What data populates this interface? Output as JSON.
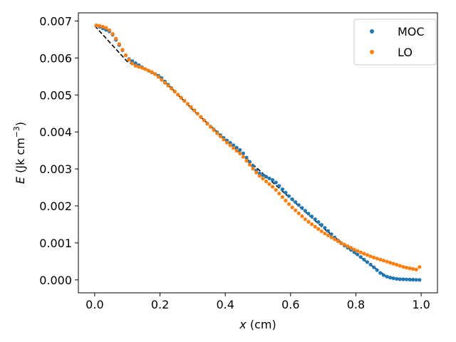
{
  "chart_data": {
    "type": "scatter",
    "xlabel_var": "x",
    "xlabel_unit": " (cm)",
    "ylabel_var": "E",
    "ylabel_unit_pre": " (Jk cm",
    "ylabel_unit_sup": "−3",
    "ylabel_unit_post": ")",
    "xlim": [
      -0.05,
      1.05
    ],
    "ylim": [
      -0.00035,
      0.00722
    ],
    "x_ticks": [
      0.0,
      0.2,
      0.4,
      0.6,
      0.8,
      1.0
    ],
    "x_tick_labels": [
      "0.0",
      "0.2",
      "0.4",
      "0.6",
      "0.8",
      "1.0"
    ],
    "y_ticks": [
      0.0,
      0.001,
      0.002,
      0.003,
      0.004,
      0.005,
      0.006,
      0.007
    ],
    "y_tick_labels": [
      "0.000",
      "0.001",
      "0.002",
      "0.003",
      "0.004",
      "0.005",
      "0.006",
      "0.007"
    ],
    "legend": {
      "position": "top-right",
      "entries": [
        "MOC",
        "LO"
      ]
    },
    "colors": {
      "MOC": "#1f77b4",
      "LO": "#ff7f0e",
      "reference": "#000000"
    },
    "reference_line": {
      "style": "dashed",
      "points": [
        [
          0.0,
          0.00687
        ],
        [
          0.1,
          0.0059
        ],
        [
          0.2,
          0.0055
        ],
        [
          0.3,
          0.0046
        ],
        [
          0.4,
          0.0038
        ],
        [
          0.5,
          0.003
        ],
        [
          0.6,
          0.0022
        ],
        [
          0.7,
          0.0014
        ],
        [
          0.8,
          0.0007
        ],
        [
          0.9,
          5e-05
        ],
        [
          1.0,
          0.0
        ]
      ]
    },
    "series": [
      {
        "name": "MOC",
        "keypoints": [
          [
            0.005,
            0.00688
          ],
          [
            0.05,
            0.0067
          ],
          [
            0.1,
            0.006
          ],
          [
            0.15,
            0.00572
          ],
          [
            0.2,
            0.0055
          ],
          [
            0.25,
            0.00505
          ],
          [
            0.3,
            0.00463
          ],
          [
            0.35,
            0.00418
          ],
          [
            0.4,
            0.0038
          ],
          [
            0.45,
            0.00348
          ],
          [
            0.5,
            0.0029
          ],
          [
            0.55,
            0.00268
          ],
          [
            0.6,
            0.00222
          ],
          [
            0.65,
            0.00183
          ],
          [
            0.7,
            0.00145
          ],
          [
            0.75,
            0.00102
          ],
          [
            0.8,
            0.00072
          ],
          [
            0.85,
            0.00038
          ],
          [
            0.88,
            0.00015
          ],
          [
            0.9,
            7e-05
          ],
          [
            0.93,
            2e-05
          ],
          [
            0.995,
            0.0
          ]
        ]
      },
      {
        "name": "LO",
        "keypoints": [
          [
            0.005,
            0.00688
          ],
          [
            0.02,
            0.00686
          ],
          [
            0.04,
            0.0068
          ],
          [
            0.06,
            0.0066
          ],
          [
            0.08,
            0.0063
          ],
          [
            0.1,
            0.006
          ],
          [
            0.12,
            0.0058
          ],
          [
            0.15,
            0.00572
          ],
          [
            0.18,
            0.0056
          ],
          [
            0.2,
            0.00545
          ],
          [
            0.25,
            0.00505
          ],
          [
            0.3,
            0.00463
          ],
          [
            0.35,
            0.00418
          ],
          [
            0.4,
            0.00375
          ],
          [
            0.45,
            0.00338
          ],
          [
            0.5,
            0.00285
          ],
          [
            0.55,
            0.00248
          ],
          [
            0.6,
            0.002
          ],
          [
            0.65,
            0.0016
          ],
          [
            0.7,
            0.00128
          ],
          [
            0.75,
            0.00102
          ],
          [
            0.8,
            0.0008
          ],
          [
            0.85,
            0.00062
          ],
          [
            0.9,
            0.00048
          ],
          [
            0.95,
            0.00034
          ],
          [
            0.985,
            0.00028
          ],
          [
            0.995,
            0.00035
          ]
        ]
      }
    ],
    "points_per_series": 100
  }
}
